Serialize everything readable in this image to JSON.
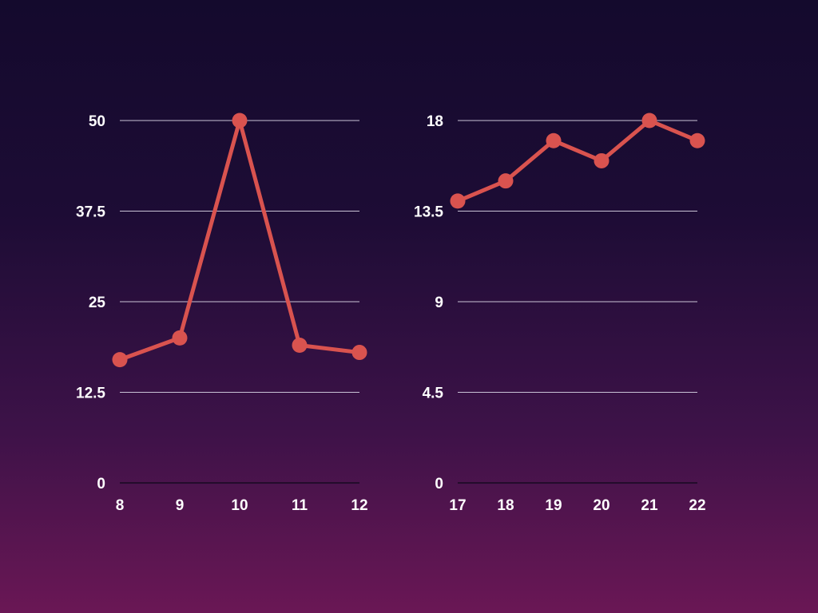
{
  "chart_data": [
    {
      "type": "line",
      "x": [
        8,
        9,
        10,
        11,
        12
      ],
      "x_tick_labels": [
        "8",
        "9",
        "10",
        "11",
        "12"
      ],
      "series": [
        {
          "values": [
            17,
            20,
            50,
            19,
            18
          ],
          "color": "#d9534f"
        }
      ],
      "y_ticks": [
        0,
        12.5,
        25,
        37.5,
        50
      ],
      "y_tick_labels": [
        "0",
        "12.5",
        "25",
        "37.5",
        "50"
      ],
      "ylim": [
        0,
        50
      ],
      "xlim": [
        8,
        12
      ],
      "grid": true,
      "title": "",
      "xlabel": "",
      "ylabel": ""
    },
    {
      "type": "line",
      "x": [
        17,
        18,
        19,
        20,
        21,
        22
      ],
      "x_tick_labels": [
        "17",
        "18",
        "19",
        "20",
        "21",
        "22"
      ],
      "series": [
        {
          "values": [
            14,
            15,
            17,
            16,
            18,
            17
          ],
          "color": "#d9534f"
        }
      ],
      "y_ticks": [
        0,
        4.5,
        9,
        13.5,
        18
      ],
      "y_tick_labels": [
        "0",
        "4.5",
        "9",
        "13.5",
        "18"
      ],
      "ylim": [
        0,
        18
      ],
      "xlim": [
        17,
        22
      ],
      "grid": true,
      "title": "",
      "xlabel": "",
      "ylabel": ""
    }
  ],
  "colors": {
    "line": "#d9534f",
    "grid": "#c9c3d6",
    "axis": "#0d0818",
    "text": "#ffffff"
  }
}
